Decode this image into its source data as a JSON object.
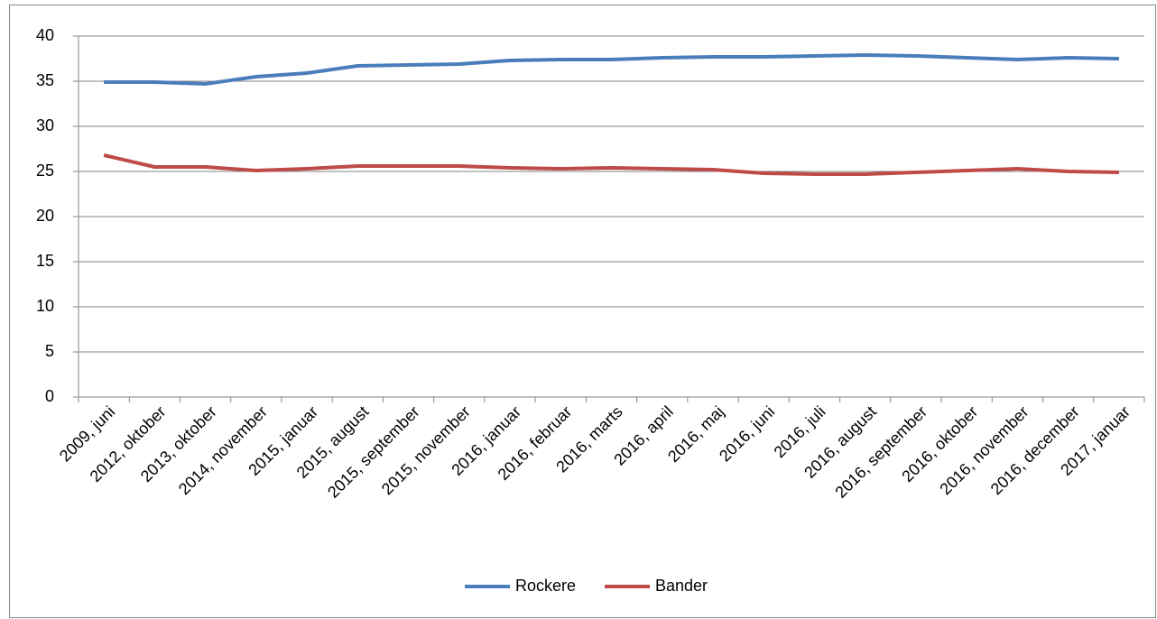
{
  "chart_data": {
    "type": "line",
    "categories": [
      "2009, juni",
      "2012, oktober",
      "2013, oktober",
      "2014, november",
      "2015, januar",
      "2015, august",
      "2015, september",
      "2015, november",
      "2016, januar",
      "2016, februar",
      "2016, marts",
      "2016, april",
      "2016, maj",
      "2016, juni",
      "2016, juli",
      "2016, august",
      "2016, september",
      "2016, oktober",
      "2016, november",
      "2016, december",
      "2017, januar"
    ],
    "series": [
      {
        "name": "Rockere",
        "color": "#4a7ebb",
        "values": [
          34.9,
          34.9,
          34.7,
          35.5,
          35.9,
          36.7,
          36.8,
          36.9,
          37.3,
          37.4,
          37.4,
          37.6,
          37.7,
          37.7,
          37.8,
          37.9,
          37.8,
          37.6,
          37.4,
          37.6,
          37.5
        ]
      },
      {
        "name": "Bander",
        "color": "#be4b48",
        "values": [
          26.8,
          25.5,
          25.5,
          25.1,
          25.3,
          25.6,
          25.6,
          25.6,
          25.4,
          25.3,
          25.4,
          25.3,
          25.2,
          24.8,
          24.7,
          24.7,
          24.9,
          25.1,
          25.3,
          25.0,
          24.9
        ]
      }
    ],
    "ylim": [
      0,
      40
    ],
    "yticks": [
      0,
      5,
      10,
      15,
      20,
      25,
      30,
      35,
      40
    ],
    "grid": true,
    "legend": "bottom"
  }
}
